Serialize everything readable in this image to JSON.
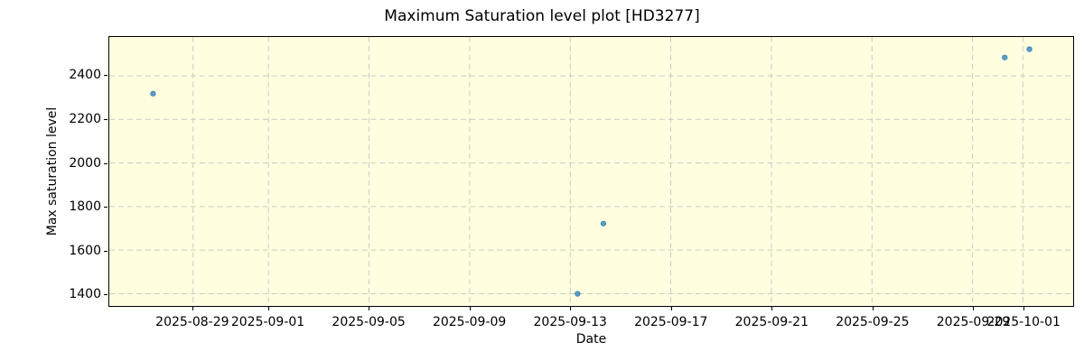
{
  "chart_data": {
    "type": "scatter",
    "title": "Maximum Saturation level plot [HD3277]",
    "xlabel": "Date",
    "ylabel": "Max saturation level",
    "grid": true,
    "grid_style": "dashed",
    "legend": "none",
    "x_unit": "days since 2025-08-25",
    "x_domain": [
      0.67,
      39.0
    ],
    "y_domain": [
      1344,
      2578
    ],
    "x_ticks": [
      {
        "day": 4,
        "label": "2025-08-29"
      },
      {
        "day": 7,
        "label": "2025-09-01"
      },
      {
        "day": 11,
        "label": "2025-09-05"
      },
      {
        "day": 15,
        "label": "2025-09-09"
      },
      {
        "day": 19,
        "label": "2025-09-13"
      },
      {
        "day": 23,
        "label": "2025-09-17"
      },
      {
        "day": 27,
        "label": "2025-09-21"
      },
      {
        "day": 31,
        "label": "2025-09-25"
      },
      {
        "day": 35,
        "label": "2025-09-29"
      },
      {
        "day": 37,
        "label": "2025-10-01"
      }
    ],
    "y_ticks": [
      1400,
      1600,
      1800,
      2000,
      2200,
      2400
    ],
    "points": [
      {
        "date": "2025-08-27",
        "day": 2.41,
        "value": 2318
      },
      {
        "date": "2025-09-13",
        "day": 19.29,
        "value": 1400
      },
      {
        "date": "2025-09-14",
        "day": 20.32,
        "value": 1722
      },
      {
        "date": "2025-09-30",
        "day": 36.28,
        "value": 2484
      },
      {
        "date": "2025-10-01",
        "day": 37.26,
        "value": 2522
      }
    ]
  },
  "style": {
    "figure_bg": "#ffffff",
    "plot_bg": "#ffffe0",
    "point_fill": "rgba(31,119,180,0.72)",
    "point_edge": "rgba(31,119,180,0.9)",
    "grid_color": "#c9c9c2",
    "axis_color": "#000000",
    "text_color": "#000000"
  }
}
